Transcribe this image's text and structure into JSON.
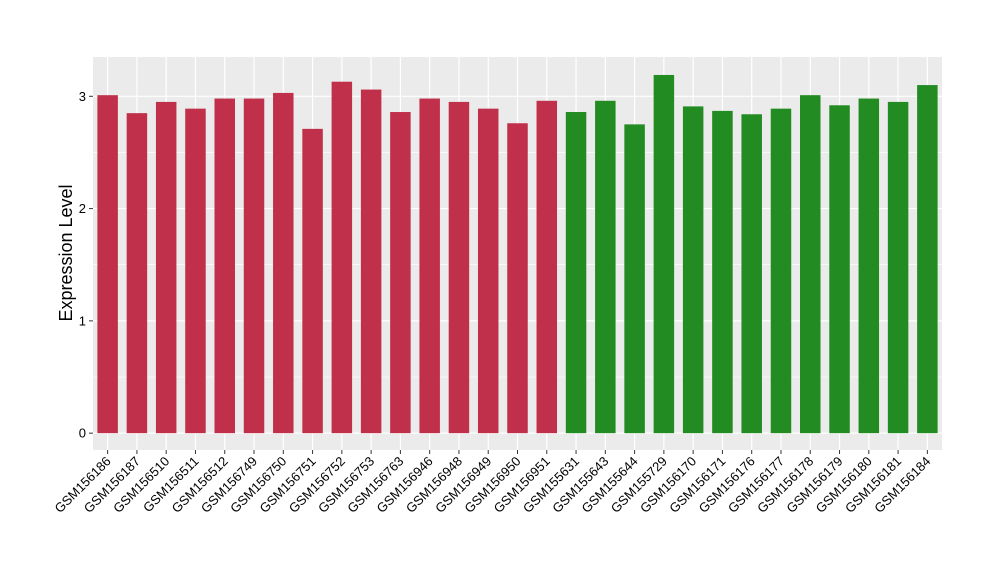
{
  "chart_data": {
    "type": "bar",
    "title": "",
    "xlabel": "",
    "ylabel": "Expression Level",
    "ylim": [
      -0.15,
      3.35
    ],
    "yticks": [
      0,
      1,
      2,
      3
    ],
    "grid": true,
    "legend": "none",
    "categories": [
      "GSM156186",
      "GSM156187",
      "GSM156510",
      "GSM156511",
      "GSM156512",
      "GSM156749",
      "GSM156750",
      "GSM156751",
      "GSM156752",
      "GSM156753",
      "GSM156763",
      "GSM156946",
      "GSM156948",
      "GSM156949",
      "GSM156950",
      "GSM156951",
      "GSM155631",
      "GSM155643",
      "GSM155644",
      "GSM155729",
      "GSM156170",
      "GSM156171",
      "GSM156176",
      "GSM156177",
      "GSM156178",
      "GSM156179",
      "GSM156180",
      "GSM156181",
      "GSM156184"
    ],
    "values": [
      3.01,
      2.85,
      2.95,
      2.89,
      2.98,
      2.98,
      3.03,
      2.71,
      3.13,
      3.06,
      2.86,
      2.98,
      2.95,
      2.89,
      2.76,
      2.96,
      2.86,
      2.96,
      2.75,
      3.19,
      2.91,
      2.87,
      2.84,
      2.89,
      3.01,
      2.92,
      2.98,
      2.95,
      3.1
    ],
    "group_sizes": [
      16,
      13
    ],
    "colors": [
      "#c0304a",
      "#228b22"
    ],
    "panel_background": "#ebebeb",
    "grid_color": "#ffffff"
  }
}
